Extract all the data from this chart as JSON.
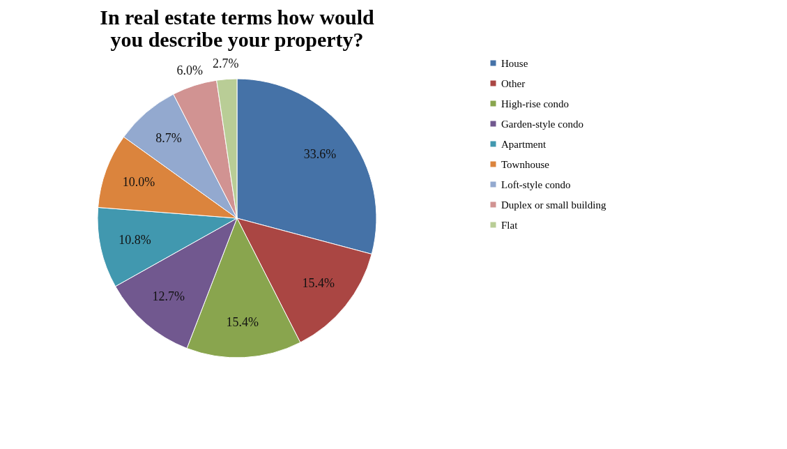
{
  "chart_data": {
    "type": "pie",
    "title": "In real estate terms how would you describe your property?",
    "categories": [
      "House",
      "Other",
      "High-rise condo",
      "Garden-style condo",
      "Apartment",
      "Townhouse",
      "Loft-style condo",
      "Duplex or small building",
      "Flat"
    ],
    "values": [
      33.6,
      15.4,
      15.4,
      12.7,
      10.8,
      10.0,
      8.7,
      6.0,
      2.7
    ],
    "value_labels": [
      "33.6%",
      "15.4%",
      "15.4%",
      "12.7%",
      "10.8%",
      "10.0%",
      "8.7%",
      "6.0%",
      "2.7%"
    ],
    "colors": [
      "#4572a7",
      "#aa4643",
      "#89a54e",
      "#71588f",
      "#4198af",
      "#db843d",
      "#93a9cf",
      "#d19392",
      "#b9cd96"
    ],
    "legend": "right"
  }
}
